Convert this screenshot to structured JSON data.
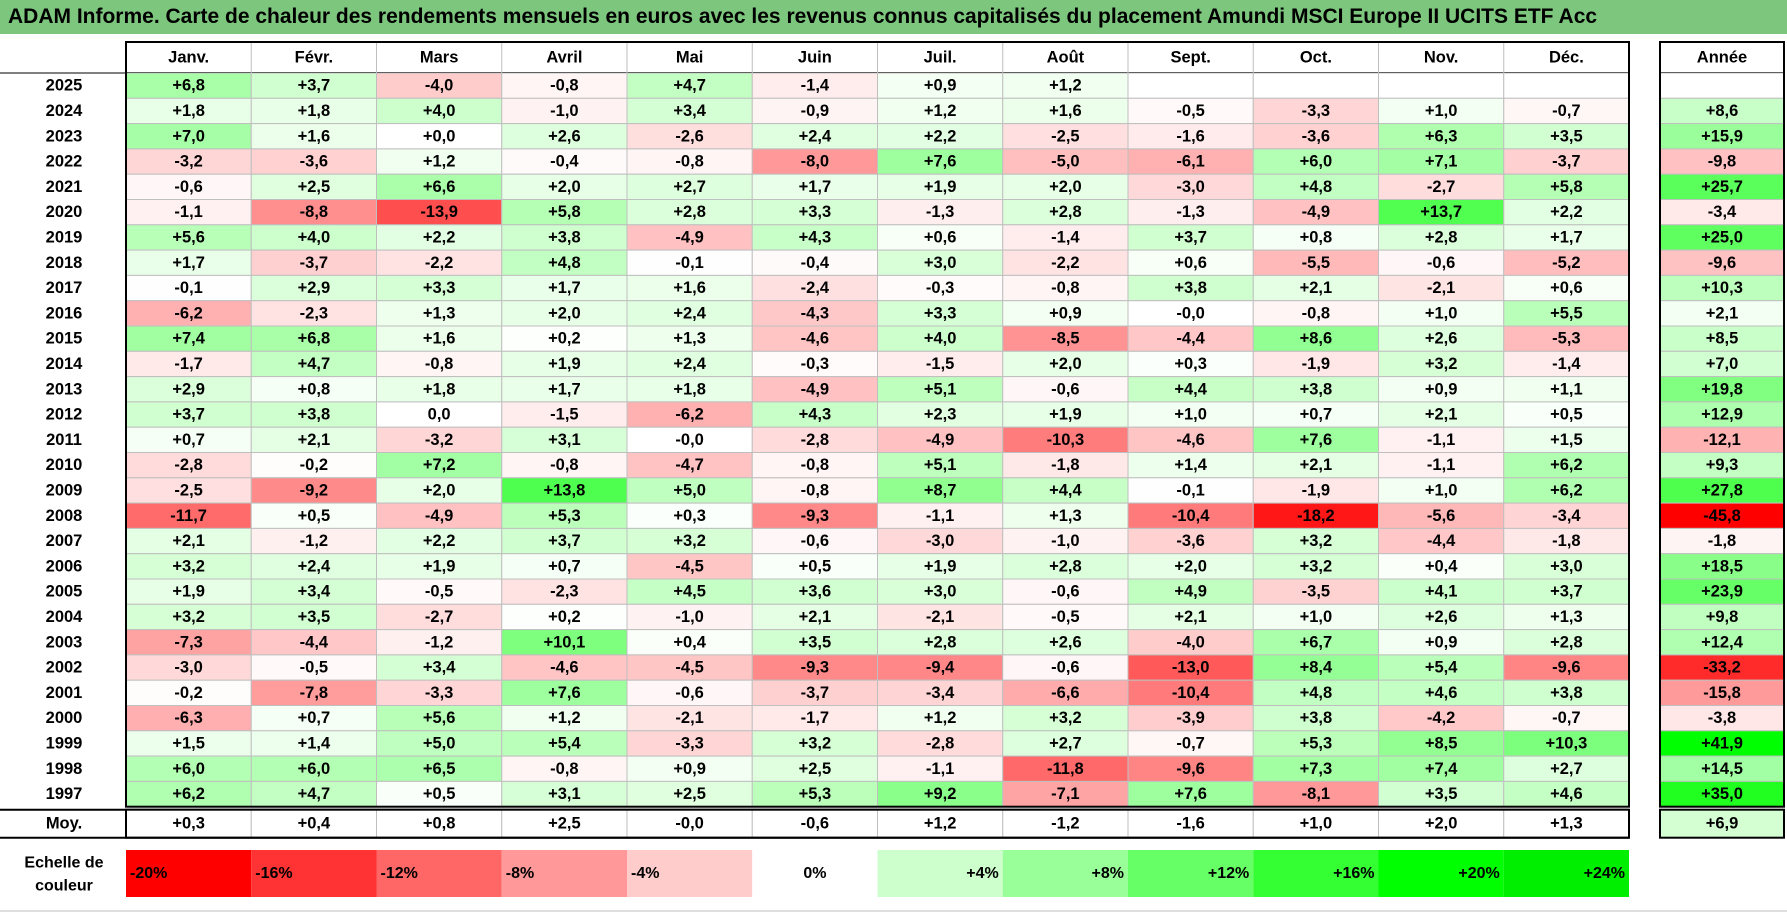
{
  "title": "ADAM Informe. Carte de chaleur des rendements mensuels en euros avec les revenus connus capitalisés du placement Amundi MSCI Europe II UCITS ETF Acc",
  "chart_data": {
    "type": "heatmap",
    "title": "ADAM Informe. Carte de chaleur des rendements mensuels en euros avec les revenus connus capitalisés du placement Amundi MSCI Europe II UCITS ETF Acc",
    "columns": [
      "Janv.",
      "Févr.",
      "Mars",
      "Avril",
      "Mai",
      "Juin",
      "Juil.",
      "Août",
      "Sept.",
      "Oct.",
      "Nov.",
      "Déc."
    ],
    "year_column_label": "Année",
    "rows": [
      {
        "year": "2025",
        "values": [
          "+6,8",
          "+3,7",
          "-4,0",
          "-0,8",
          "+4,7",
          "-1,4",
          "+0,9",
          "+1,2",
          "",
          "",
          "",
          ""
        ],
        "annual": ""
      },
      {
        "year": "2024",
        "values": [
          "+1,8",
          "+1,8",
          "+4,0",
          "-1,0",
          "+3,4",
          "-0,9",
          "+1,2",
          "+1,6",
          "-0,5",
          "-3,3",
          "+1,0",
          "-0,7"
        ],
        "annual": "+8,6"
      },
      {
        "year": "2023",
        "values": [
          "+7,0",
          "+1,6",
          "+0,0",
          "+2,6",
          "-2,6",
          "+2,4",
          "+2,2",
          "-2,5",
          "-1,6",
          "-3,6",
          "+6,3",
          "+3,5"
        ],
        "annual": "+15,9"
      },
      {
        "year": "2022",
        "values": [
          "-3,2",
          "-3,6",
          "+1,2",
          "-0,4",
          "-0,8",
          "-8,0",
          "+7,6",
          "-5,0",
          "-6,1",
          "+6,0",
          "+7,1",
          "-3,7"
        ],
        "annual": "-9,8"
      },
      {
        "year": "2021",
        "values": [
          "-0,6",
          "+2,5",
          "+6,6",
          "+2,0",
          "+2,7",
          "+1,7",
          "+1,9",
          "+2,0",
          "-3,0",
          "+4,8",
          "-2,7",
          "+5,8"
        ],
        "annual": "+25,7"
      },
      {
        "year": "2020",
        "values": [
          "-1,1",
          "-8,8",
          "-13,9",
          "+5,8",
          "+2,8",
          "+3,3",
          "-1,3",
          "+2,8",
          "-1,3",
          "-4,9",
          "+13,7",
          "+2,2"
        ],
        "annual": "-3,4"
      },
      {
        "year": "2019",
        "values": [
          "+5,6",
          "+4,0",
          "+2,2",
          "+3,8",
          "-4,9",
          "+4,3",
          "+0,6",
          "-1,4",
          "+3,7",
          "+0,8",
          "+2,8",
          "+1,7"
        ],
        "annual": "+25,0"
      },
      {
        "year": "2018",
        "values": [
          "+1,7",
          "-3,7",
          "-2,2",
          "+4,8",
          "-0,1",
          "-0,4",
          "+3,0",
          "-2,2",
          "+0,6",
          "-5,5",
          "-0,6",
          "-5,2"
        ],
        "annual": "-9,6"
      },
      {
        "year": "2017",
        "values": [
          "-0,1",
          "+2,9",
          "+3,3",
          "+1,7",
          "+1,6",
          "-2,4",
          "-0,3",
          "-0,8",
          "+3,8",
          "+2,1",
          "-2,1",
          "+0,6"
        ],
        "annual": "+10,3"
      },
      {
        "year": "2016",
        "values": [
          "-6,2",
          "-2,3",
          "+1,3",
          "+2,0",
          "+2,4",
          "-4,3",
          "+3,3",
          "+0,9",
          "-0,0",
          "-0,8",
          "+1,0",
          "+5,5"
        ],
        "annual": "+2,1"
      },
      {
        "year": "2015",
        "values": [
          "+7,4",
          "+6,8",
          "+1,6",
          "+0,2",
          "+1,3",
          "-4,6",
          "+4,0",
          "-8,5",
          "-4,4",
          "+8,6",
          "+2,6",
          "-5,3"
        ],
        "annual": "+8,5"
      },
      {
        "year": "2014",
        "values": [
          "-1,7",
          "+4,7",
          "-0,8",
          "+1,9",
          "+2,4",
          "-0,3",
          "-1,5",
          "+2,0",
          "+0,3",
          "-1,9",
          "+3,2",
          "-1,4"
        ],
        "annual": "+7,0"
      },
      {
        "year": "2013",
        "values": [
          "+2,9",
          "+0,8",
          "+1,8",
          "+1,7",
          "+1,8",
          "-4,9",
          "+5,1",
          "-0,6",
          "+4,4",
          "+3,8",
          "+0,9",
          "+1,1"
        ],
        "annual": "+19,8"
      },
      {
        "year": "2012",
        "values": [
          "+3,7",
          "+3,8",
          "0,0",
          "-1,5",
          "-6,2",
          "+4,3",
          "+2,3",
          "+1,9",
          "+1,0",
          "+0,7",
          "+2,1",
          "+0,5"
        ],
        "annual": "+12,9"
      },
      {
        "year": "2011",
        "values": [
          "+0,7",
          "+2,1",
          "-3,2",
          "+3,1",
          "-0,0",
          "-2,8",
          "-4,9",
          "-10,3",
          "-4,6",
          "+7,6",
          "-1,1",
          "+1,5"
        ],
        "annual": "-12,1"
      },
      {
        "year": "2010",
        "values": [
          "-2,8",
          "-0,2",
          "+7,2",
          "-0,8",
          "-4,7",
          "-0,8",
          "+5,1",
          "-1,8",
          "+1,4",
          "+2,1",
          "-1,1",
          "+6,2"
        ],
        "annual": "+9,3"
      },
      {
        "year": "2009",
        "values": [
          "-2,5",
          "-9,2",
          "+2,0",
          "+13,8",
          "+5,0",
          "-0,8",
          "+8,7",
          "+4,4",
          "-0,1",
          "-1,9",
          "+1,0",
          "+6,2"
        ],
        "annual": "+27,8"
      },
      {
        "year": "2008",
        "values": [
          "-11,7",
          "+0,5",
          "-4,9",
          "+5,3",
          "+0,3",
          "-9,3",
          "-1,1",
          "+1,3",
          "-10,4",
          "-18,2",
          "-5,6",
          "-3,4"
        ],
        "annual": "-45,8"
      },
      {
        "year": "2007",
        "values": [
          "+2,1",
          "-1,2",
          "+2,2",
          "+3,7",
          "+3,2",
          "-0,6",
          "-3,0",
          "-1,0",
          "-3,6",
          "+3,2",
          "-4,4",
          "-1,8"
        ],
        "annual": "-1,8"
      },
      {
        "year": "2006",
        "values": [
          "+3,2",
          "+2,4",
          "+1,9",
          "+0,7",
          "-4,5",
          "+0,5",
          "+1,9",
          "+2,8",
          "+2,0",
          "+3,2",
          "+0,4",
          "+3,0"
        ],
        "annual": "+18,5"
      },
      {
        "year": "2005",
        "values": [
          "+1,9",
          "+3,4",
          "-0,5",
          "-2,3",
          "+4,5",
          "+3,6",
          "+3,0",
          "-0,6",
          "+4,9",
          "-3,5",
          "+4,1",
          "+3,7"
        ],
        "annual": "+23,9"
      },
      {
        "year": "2004",
        "values": [
          "+3,2",
          "+3,5",
          "-2,7",
          "+0,2",
          "-1,0",
          "+2,1",
          "-2,1",
          "-0,5",
          "+2,1",
          "+1,0",
          "+2,6",
          "+1,3"
        ],
        "annual": "+9,8"
      },
      {
        "year": "2003",
        "values": [
          "-7,3",
          "-4,4",
          "-1,2",
          "+10,1",
          "+0,4",
          "+3,5",
          "+2,8",
          "+2,6",
          "-4,0",
          "+6,7",
          "+0,9",
          "+2,8"
        ],
        "annual": "+12,4"
      },
      {
        "year": "2002",
        "values": [
          "-3,0",
          "-0,5",
          "+3,4",
          "-4,6",
          "-4,5",
          "-9,3",
          "-9,4",
          "-0,6",
          "-13,0",
          "+8,4",
          "+5,4",
          "-9,6"
        ],
        "annual": "-33,2"
      },
      {
        "year": "2001",
        "values": [
          "-0,2",
          "-7,8",
          "-3,3",
          "+7,6",
          "-0,6",
          "-3,7",
          "-3,4",
          "-6,6",
          "-10,4",
          "+4,8",
          "+4,6",
          "+3,8"
        ],
        "annual": "-15,8"
      },
      {
        "year": "2000",
        "values": [
          "-6,3",
          "+0,7",
          "+5,6",
          "+1,2",
          "-2,1",
          "-1,7",
          "+1,2",
          "+3,2",
          "-3,9",
          "+3,8",
          "-4,2",
          "-0,7"
        ],
        "annual": "-3,8"
      },
      {
        "year": "1999",
        "values": [
          "+1,5",
          "+1,4",
          "+5,0",
          "+5,4",
          "-3,3",
          "+3,2",
          "-2,8",
          "+2,7",
          "-0,7",
          "+5,3",
          "+8,5",
          "+10,3"
        ],
        "annual": "+41,9"
      },
      {
        "year": "1998",
        "values": [
          "+6,0",
          "+6,0",
          "+6,5",
          "-0,8",
          "+0,9",
          "+2,5",
          "-1,1",
          "-11,8",
          "-9,6",
          "+7,3",
          "+7,4",
          "+2,7"
        ],
        "annual": "+14,5"
      },
      {
        "year": "1997",
        "values": [
          "+6,2",
          "+4,7",
          "+0,5",
          "+3,1",
          "+2,5",
          "+5,3",
          "+9,2",
          "-7,1",
          "+7,6",
          "-8,1",
          "+3,5",
          "+4,6"
        ],
        "annual": "+35,0"
      }
    ],
    "average": {
      "label": "Moy.",
      "values": [
        "+0,3",
        "+0,4",
        "+0,8",
        "+2,5",
        "-0,0",
        "-0,6",
        "+1,2",
        "-1,2",
        "-1,6",
        "+1,0",
        "+2,0",
        "+1,3"
      ],
      "annual": "+6,9"
    },
    "color_scale": {
      "label_line1": "Echelle de",
      "label_line2": "couleur",
      "stops": [
        {
          "label": "-20%",
          "value": -20,
          "color": "#ff0000"
        },
        {
          "label": "-16%",
          "value": -16,
          "color": "#ff3333"
        },
        {
          "label": "-12%",
          "value": -12,
          "color": "#ff6666"
        },
        {
          "label": "-8%",
          "value": -8,
          "color": "#ff9999"
        },
        {
          "label": "-4%",
          "value": -4,
          "color": "#ffcccc"
        },
        {
          "label": "0%",
          "value": 0,
          "color": "#ffffff"
        },
        {
          "label": "+4%",
          "value": 4,
          "color": "#ccffcc"
        },
        {
          "label": "+8%",
          "value": 8,
          "color": "#99ff99"
        },
        {
          "label": "+12%",
          "value": 12,
          "color": "#66ff66"
        },
        {
          "label": "+16%",
          "value": 16,
          "color": "#33ff33"
        },
        {
          "label": "+20%",
          "value": 20,
          "color": "#00ff00"
        },
        {
          "label": "+24%",
          "value": 24,
          "color": "#00ee00"
        }
      ]
    },
    "colors": {
      "title_band": "#7dc67d",
      "grid_line": "#bfbfbf",
      "border": "#000000"
    }
  }
}
